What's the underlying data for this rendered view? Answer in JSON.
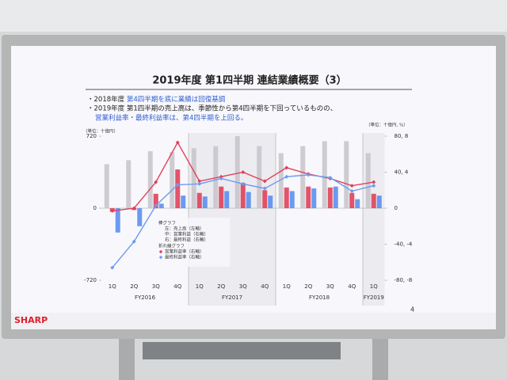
{
  "slide": {
    "title": "2019年度 第1四半期 連結業績概要（3）",
    "bullets": [
      [
        "・2018年度 ",
        "第4四半期を底に業績は回復基調"
      ],
      [
        "・2019年度 第1四半期の売上高は、季節性から第4四半期を下回っているものの、"
      ],
      [
        "営業利益率・最終利益率は、第4四半期を上回る。"
      ]
    ],
    "page_number": "4",
    "logo": "SHARP"
  },
  "chart_data": {
    "type": "bar",
    "unit_left": "（単位：十億円）",
    "unit_right": "（単位：十億円, %）",
    "categories": [
      "1Q",
      "2Q",
      "3Q",
      "4Q",
      "1Q",
      "2Q",
      "3Q",
      "4Q",
      "1Q",
      "2Q",
      "3Q",
      "4Q",
      "1Q"
    ],
    "category_groups": [
      "FY2016",
      "FY2017",
      "FY2018",
      "FY2019"
    ],
    "ylim": [
      -720,
      720
    ],
    "yticks": [
      720,
      0,
      -720
    ],
    "y2lim": [
      -80,
      80
    ],
    "y2ticks": [
      {
        "value": 80,
        "label": "80, 8"
      },
      {
        "value": 40,
        "label": "40, 4"
      },
      0,
      {
        "value": -40,
        "label": "-40, -4"
      },
      {
        "value": -80,
        "label": "-80, -8"
      }
    ],
    "y3lim": [
      -8,
      8
    ],
    "legend_groups": [
      "棒グラフ",
      "折れ線グラフ"
    ],
    "series": [
      {
        "name": "左：売上高（左軸）",
        "color": "#c9c6cc",
        "type": "bar",
        "axis": "y",
        "values": [
          440,
          480,
          570,
          560,
          600,
          620,
          720,
          620,
          550,
          620,
          670,
          670,
          550
        ]
      },
      {
        "name": "中：営業利益（右軸）",
        "color": "#e0405a",
        "type": "bar",
        "axis": "y2",
        "values": [
          -4,
          -2,
          16,
          43,
          17,
          24,
          28,
          20,
          23,
          24,
          23,
          17,
          16
        ]
      },
      {
        "name": "右：最終利益（右軸）",
        "color": "#5b8ff0",
        "type": "bar",
        "axis": "y2",
        "values": [
          -27,
          -20,
          5,
          14,
          13,
          19,
          18,
          14,
          19,
          22,
          24,
          10,
          14
        ]
      },
      {
        "name": "営業利益率（右軸）",
        "color": "#e0405a",
        "type": "line",
        "axis": "y3",
        "values": [
          -0.3,
          0,
          2.9,
          7.3,
          3.0,
          3.5,
          4.0,
          3.0,
          4.5,
          3.8,
          3.3,
          2.5,
          2.9
        ]
      },
      {
        "name": "最終利益率（右軸）",
        "color": "#6a9cf2",
        "type": "line",
        "axis": "y3",
        "values": [
          -6.6,
          -3.7,
          0.3,
          2.6,
          2.7,
          3.3,
          2.7,
          2.2,
          3.5,
          3.7,
          3.4,
          1.9,
          2.5
        ]
      }
    ]
  }
}
